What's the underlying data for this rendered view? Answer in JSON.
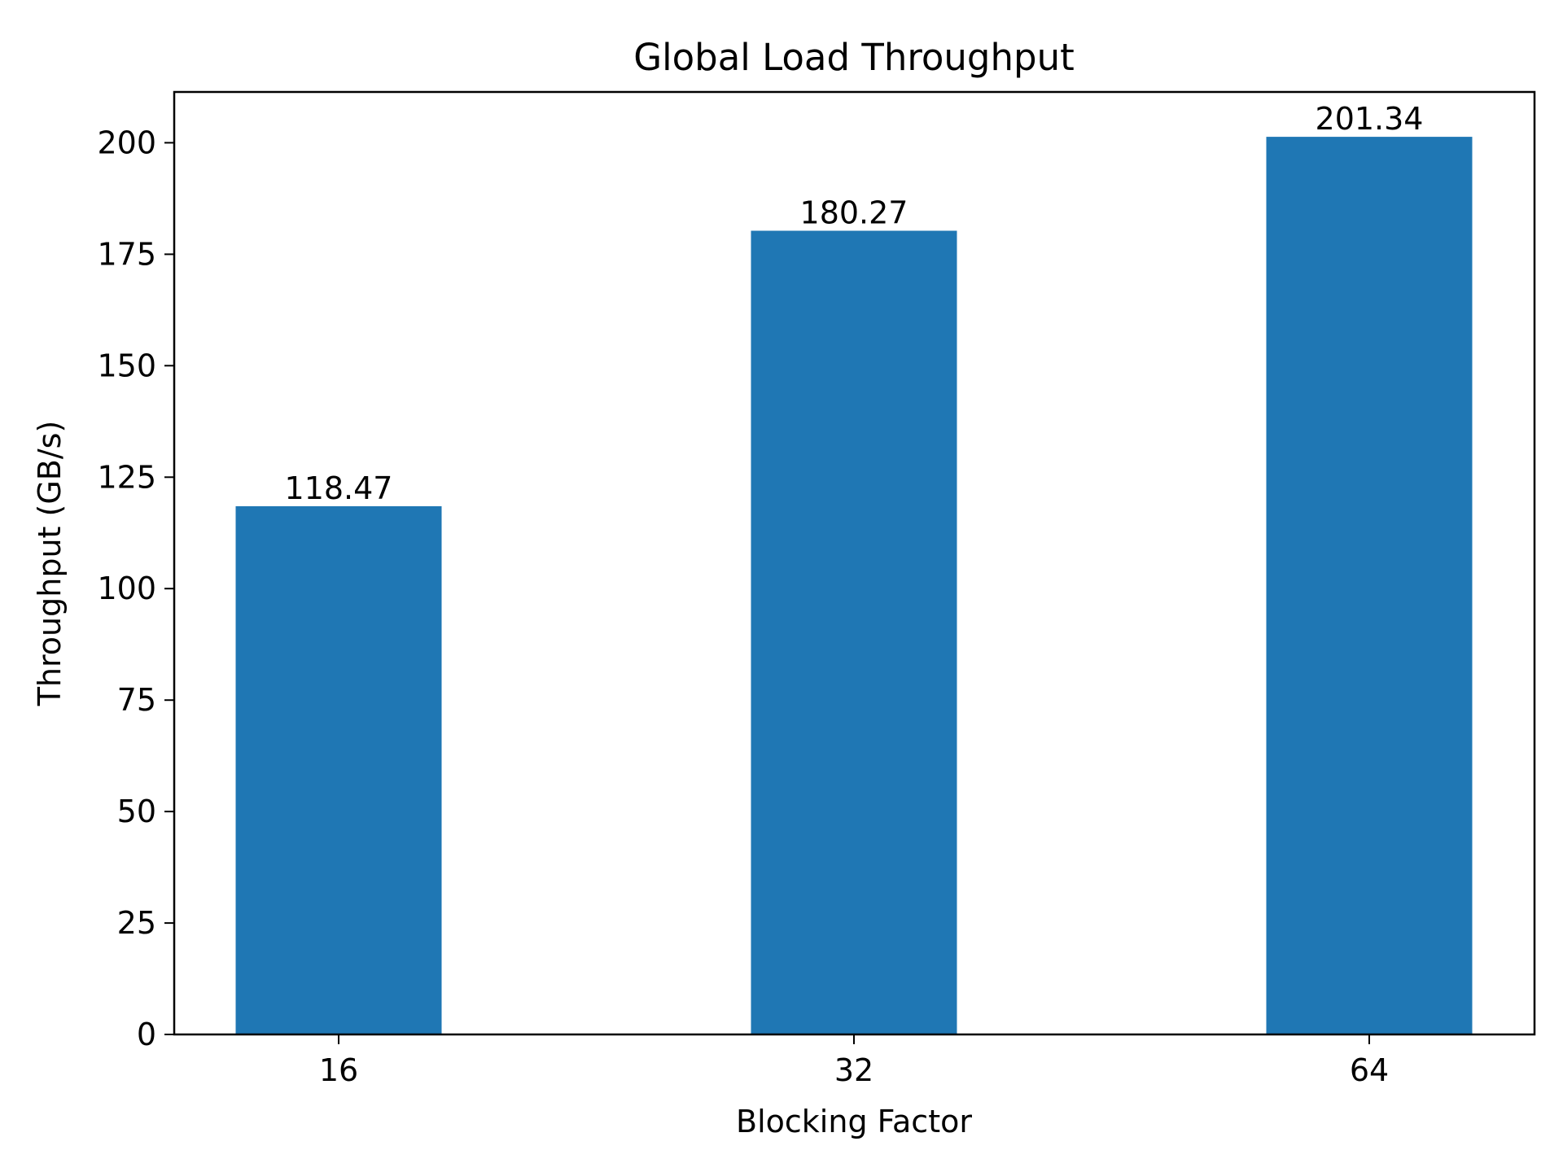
{
  "chart_data": {
    "type": "bar",
    "title": "Global Load Throughput",
    "xlabel": "Blocking Factor",
    "ylabel": "Throughput (GB/s)",
    "categories": [
      "16",
      "32",
      "64"
    ],
    "values": [
      118.47,
      180.27,
      201.34
    ],
    "value_labels": [
      "118.47",
      "180.27",
      "201.34"
    ],
    "ylim": [
      0,
      211.4
    ],
    "yticks": [
      0,
      25,
      50,
      75,
      100,
      125,
      150,
      175,
      200
    ],
    "grid": false,
    "legend": "none",
    "bar_color": "#1f77b4"
  }
}
